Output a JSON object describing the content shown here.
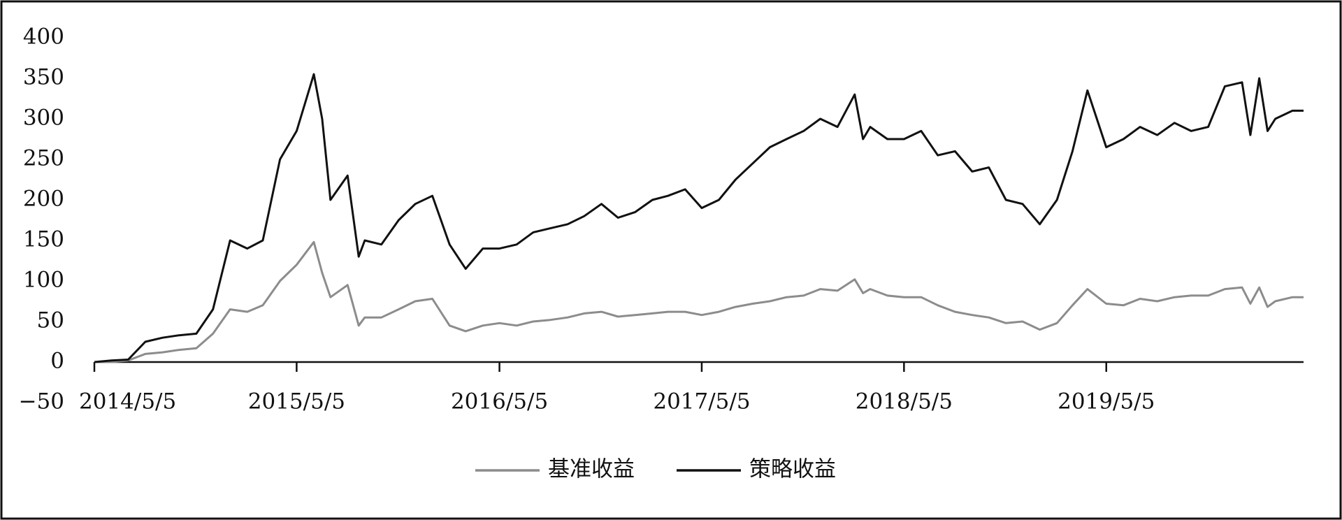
{
  "chart_data": {
    "type": "line",
    "x": [
      "2014/5/5",
      "2014/6/5",
      "2014/7/5",
      "2014/8/5",
      "2014/9/5",
      "2014/10/5",
      "2014/11/5",
      "2014/12/5",
      "2015/1/5",
      "2015/2/5",
      "2015/3/5",
      "2015/4/5",
      "2015/5/5",
      "2015/6/5",
      "2015/6/20",
      "2015/7/5",
      "2015/8/5",
      "2015/8/25",
      "2015/9/5",
      "2015/10/5",
      "2015/11/5",
      "2015/12/5",
      "2016/1/5",
      "2016/2/5",
      "2016/3/5",
      "2016/4/5",
      "2016/5/5",
      "2016/6/5",
      "2016/7/5",
      "2016/8/5",
      "2016/9/5",
      "2016/10/5",
      "2016/11/5",
      "2016/12/5",
      "2017/1/5",
      "2017/2/5",
      "2017/3/5",
      "2017/4/5",
      "2017/5/5",
      "2017/6/5",
      "2017/7/5",
      "2017/8/5",
      "2017/9/5",
      "2017/10/5",
      "2017/11/5",
      "2017/12/5",
      "2018/1/5",
      "2018/2/5",
      "2018/2/20",
      "2018/3/5",
      "2018/4/5",
      "2018/5/5",
      "2018/6/5",
      "2018/7/5",
      "2018/8/5",
      "2018/9/5",
      "2018/10/5",
      "2018/11/5",
      "2018/12/5",
      "2019/1/5",
      "2019/2/5",
      "2019/3/5",
      "2019/4/1",
      "2019/5/5",
      "2019/6/5",
      "2019/7/5",
      "2019/8/5",
      "2019/9/5",
      "2019/10/5",
      "2019/11/5",
      "2019/12/5",
      "2020/1/5",
      "2020/1/20",
      "2020/2/5",
      "2020/2/20",
      "2020/3/5",
      "2020/4/5",
      "2020/4/25"
    ],
    "series": [
      {
        "name": "基准收益",
        "color": "#8c8c8c",
        "values": [
          0,
          0,
          2,
          10,
          12,
          15,
          17,
          35,
          65,
          62,
          70,
          100,
          120,
          148,
          110,
          80,
          95,
          45,
          55,
          55,
          65,
          75,
          78,
          45,
          38,
          45,
          48,
          45,
          50,
          52,
          55,
          60,
          62,
          56,
          58,
          60,
          62,
          62,
          58,
          62,
          68,
          72,
          75,
          80,
          82,
          90,
          88,
          102,
          85,
          90,
          82,
          80,
          80,
          70,
          62,
          58,
          55,
          48,
          50,
          40,
          48,
          70,
          90,
          72,
          70,
          78,
          75,
          80,
          82,
          82,
          90,
          92,
          72,
          92,
          68,
          75,
          80,
          80
        ]
      },
      {
        "name": "策略收益",
        "color": "#111111",
        "values": [
          0,
          2,
          3,
          25,
          30,
          33,
          35,
          65,
          150,
          140,
          150,
          250,
          285,
          355,
          300,
          200,
          230,
          130,
          150,
          145,
          175,
          195,
          205,
          145,
          115,
          140,
          140,
          145,
          160,
          165,
          170,
          180,
          195,
          178,
          185,
          200,
          205,
          213,
          190,
          200,
          225,
          245,
          265,
          275,
          285,
          300,
          290,
          330,
          275,
          290,
          275,
          275,
          285,
          255,
          260,
          235,
          240,
          200,
          195,
          170,
          200,
          260,
          335,
          265,
          275,
          290,
          280,
          295,
          285,
          290,
          340,
          345,
          280,
          350,
          285,
          300,
          310,
          310
        ]
      }
    ],
    "xlim": [
      "2014/5/5",
      "2020/4/25"
    ],
    "xticks": [
      "2014/5/5",
      "2015/5/5",
      "2016/5/5",
      "2017/5/5",
      "2018/5/5",
      "2019/5/5"
    ],
    "ylim": [
      -50,
      400
    ],
    "yticks": [
      {
        "value": -50,
        "label": "−50"
      },
      0,
      50,
      100,
      150,
      200,
      250,
      300,
      350,
      400
    ],
    "legend": "bottom"
  }
}
